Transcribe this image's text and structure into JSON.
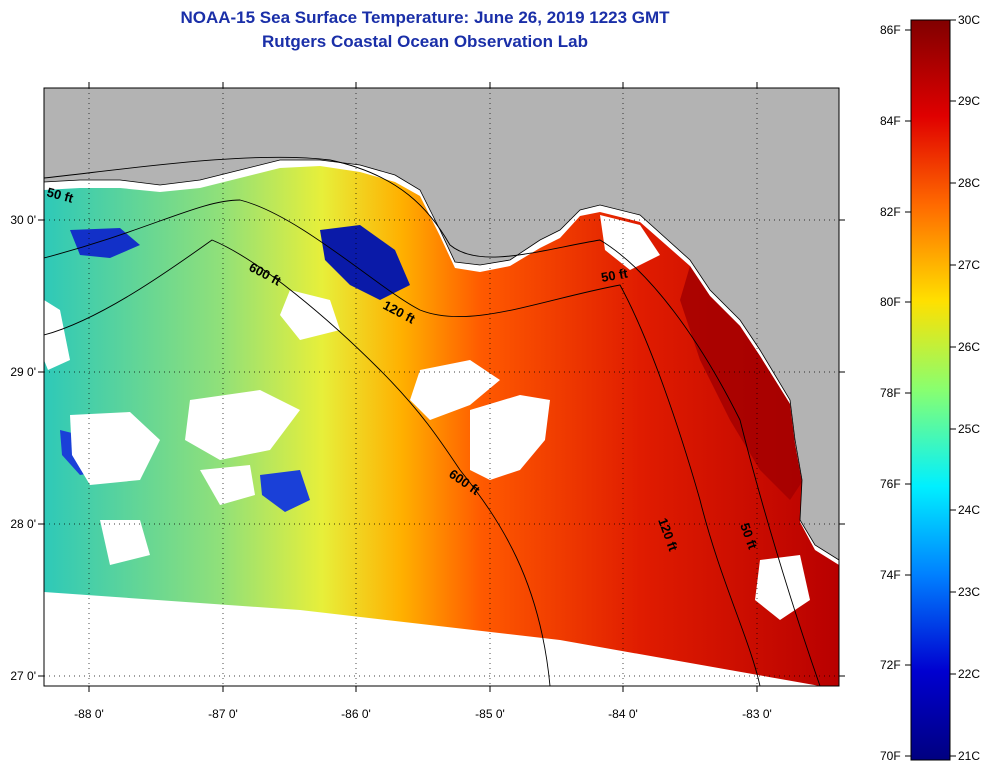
{
  "title": {
    "line1": "NOAA-15 Sea Surface Temperature:  June 26, 2019 1223 GMT",
    "line2": "Rutgers Coastal Ocean Observation Lab"
  },
  "map": {
    "lon_ticks": [
      "-88 0'",
      "-87 0'",
      "-86 0'",
      "-85 0'",
      "-84 0'",
      "-83 0'"
    ],
    "lat_ticks": [
      "30 0'",
      "29 0'",
      "28 0'",
      "27 0'"
    ],
    "contours": [
      "50 ft",
      "600 ft",
      "120 ft",
      "600 ft",
      "120 ft",
      "50 ft",
      "50 ft"
    ],
    "land_color": "#b3b3b3",
    "cloud_color": "#ffffff"
  },
  "colorbar": {
    "f_labels": [
      "86F",
      "84F",
      "82F",
      "80F",
      "78F",
      "76F",
      "74F",
      "72F",
      "70F"
    ],
    "c_labels": [
      "30C",
      "29C",
      "28C",
      "27C",
      "26C",
      "25C",
      "24C",
      "23C",
      "22C",
      "21C"
    ],
    "colors": [
      "#800000",
      "#e00000",
      "#ff6a00",
      "#ffe000",
      "#88ff70",
      "#00f0ff",
      "#0080ff",
      "#0000d0",
      "#000080"
    ]
  }
}
